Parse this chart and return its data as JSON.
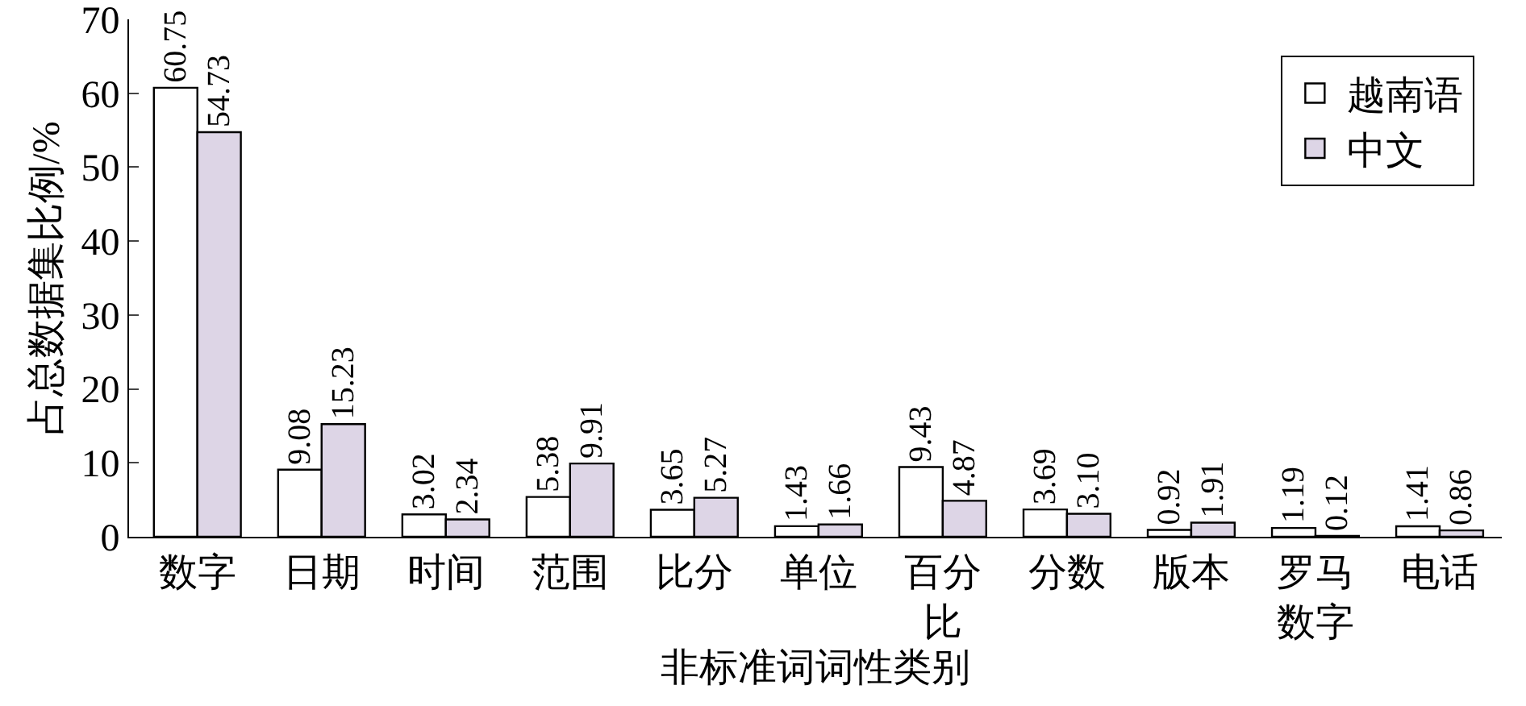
{
  "chart_data": {
    "type": "bar",
    "xlabel": "非标准词词性类别",
    "ylabel": "占总数据集比例/%",
    "categories": [
      "数字",
      "日期",
      "时间",
      "范围",
      "比分",
      "单位",
      "百分比",
      "分数",
      "版本",
      "罗马数字",
      "电话"
    ],
    "series": [
      {
        "name": "越南语",
        "color": "#ffffff",
        "values": [
          60.75,
          9.08,
          3.02,
          5.38,
          3.65,
          1.43,
          9.43,
          3.69,
          0.92,
          1.19,
          1.41
        ],
        "value_labels": [
          "60.75",
          "9.08",
          "3.02",
          "5.38",
          "3.65",
          "1.43",
          "9.43",
          "3.69",
          "0.92",
          "1.19",
          "1.41"
        ]
      },
      {
        "name": "中文",
        "color": "#ddd5e6",
        "values": [
          54.73,
          15.23,
          2.34,
          9.91,
          5.27,
          1.66,
          4.87,
          3.1,
          1.91,
          0.12,
          0.86
        ],
        "value_labels": [
          "54.73",
          "15.23",
          "2.34",
          "9.91",
          "5.27",
          "1.66",
          "4.87",
          "3.10",
          "1.91",
          "0.12",
          "0.86"
        ]
      }
    ],
    "ylim": [
      0,
      70
    ],
    "yticks": [
      0,
      10,
      20,
      30,
      40,
      50,
      60,
      70
    ],
    "grid": false,
    "legend": "top right"
  }
}
